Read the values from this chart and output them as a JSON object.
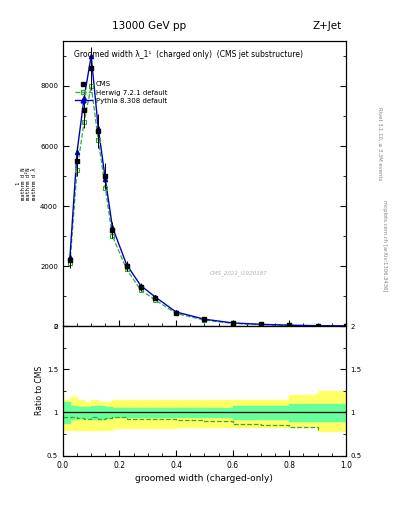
{
  "title_top": "13000 GeV pp",
  "title_right": "Z+Jet",
  "plot_title": "Groomed width λ_1¹  (charged only)  (CMS jet substructure)",
  "xlabel": "groomed width (charged-only)",
  "right_label1": "Rivet 3.1.10, ≥ 3.3M events",
  "right_label2": "mcplots.cern.ch [arXiv:1306.3436]",
  "watermark": "CMS_2021_I1920187",
  "cms_x": [
    0.025,
    0.05,
    0.075,
    0.1,
    0.125,
    0.15,
    0.175,
    0.225,
    0.275,
    0.325,
    0.4,
    0.5,
    0.6,
    0.7,
    0.8,
    0.9,
    1.0
  ],
  "cms_y": [
    2200,
    5500,
    7200,
    8600,
    6500,
    5000,
    3200,
    2000,
    1300,
    950,
    450,
    220,
    100,
    55,
    28,
    12,
    5
  ],
  "cms_yerr": [
    280,
    500,
    600,
    700,
    550,
    420,
    280,
    180,
    130,
    95,
    45,
    22,
    10,
    6,
    3,
    1.5,
    0.8
  ],
  "herwig_x": [
    0.025,
    0.05,
    0.075,
    0.1,
    0.125,
    0.15,
    0.175,
    0.225,
    0.275,
    0.325,
    0.4,
    0.5,
    0.6,
    0.7,
    0.8,
    0.9,
    1.0
  ],
  "herwig_y": [
    2100,
    5200,
    6800,
    8000,
    6200,
    4600,
    3000,
    1900,
    1200,
    880,
    420,
    200,
    90,
    48,
    24,
    10,
    4
  ],
  "pythia_x": [
    0.025,
    0.05,
    0.075,
    0.1,
    0.125,
    0.15,
    0.175,
    0.225,
    0.275,
    0.325,
    0.4,
    0.5,
    0.6,
    0.7,
    0.8,
    0.9,
    1.0
  ],
  "pythia_y": [
    2300,
    5800,
    7600,
    9000,
    6600,
    4900,
    3300,
    2050,
    1350,
    980,
    470,
    230,
    105,
    58,
    29,
    13,
    5.5
  ],
  "ylim_main": [
    0,
    9500
  ],
  "ylim_ratio": [
    0.5,
    2.0
  ],
  "xlim": [
    0.0,
    1.0
  ],
  "cms_color": "#000000",
  "herwig_color": "#33aa33",
  "pythia_color": "#0000cc",
  "herwig_band_color": "#ffff66",
  "pythia_band_color": "#66ff99",
  "bg_color": "#ffffff",
  "ytick_labels": [
    "0",
    "2000",
    "4000",
    "6000",
    "8000"
  ],
  "ratio_bin_edges": [
    0.0,
    0.025,
    0.05,
    0.075,
    0.1,
    0.125,
    0.15,
    0.175,
    0.225,
    0.275,
    0.325,
    0.4,
    0.5,
    0.6,
    0.7,
    0.8,
    0.9,
    1.0
  ],
  "ratio_herwig": [
    0.95,
    0.95,
    0.94,
    0.93,
    0.95,
    0.92,
    0.94,
    0.95,
    0.92,
    0.93,
    0.93,
    0.91,
    0.9,
    0.87,
    0.86,
    0.83,
    0.8
  ],
  "ratio_herwig_err_low": [
    0.8,
    0.8,
    0.8,
    0.8,
    0.8,
    0.8,
    0.8,
    0.82,
    0.82,
    0.82,
    0.82,
    0.83,
    0.83,
    0.83,
    0.83,
    0.83,
    0.78
  ],
  "ratio_herwig_err_high": [
    1.15,
    1.18,
    1.15,
    1.12,
    1.15,
    1.12,
    1.12,
    1.15,
    1.15,
    1.15,
    1.15,
    1.15,
    1.15,
    1.15,
    1.15,
    1.2,
    1.25
  ],
  "ratio_pythia_err_low": [
    0.88,
    0.92,
    0.94,
    0.94,
    0.92,
    0.93,
    0.94,
    0.95,
    0.95,
    0.95,
    0.95,
    0.95,
    0.95,
    0.93,
    0.93,
    0.9,
    0.9
  ],
  "ratio_pythia_err_high": [
    1.12,
    1.08,
    1.06,
    1.06,
    1.08,
    1.07,
    1.06,
    1.05,
    1.05,
    1.05,
    1.05,
    1.05,
    1.05,
    1.07,
    1.07,
    1.1,
    1.1
  ]
}
